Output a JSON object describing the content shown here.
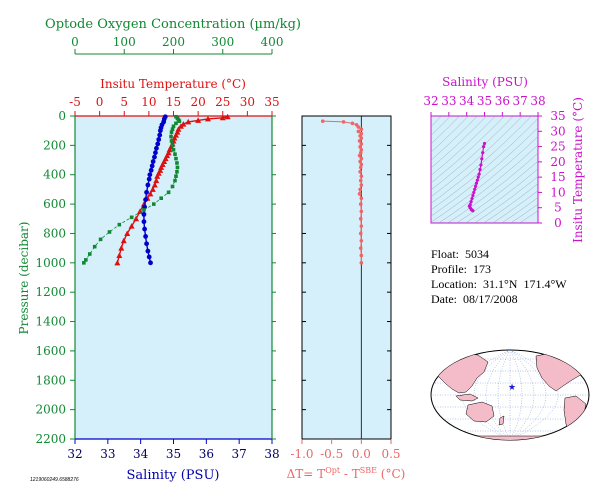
{
  "colors": {
    "background": "#ffffff",
    "plot_bg": "#d5f0fa",
    "oxygen": "#118833",
    "temperature": "#dd1111",
    "salinity": "#0000cc",
    "dt": "#ee6666",
    "ts": "#cc11cc",
    "land": "#f4bcc8",
    "float_marker": "#1a1acc"
  },
  "info": {
    "float": "Float:  5034",
    "profile": "Profile:  173",
    "location": "Location:  31.1°N  171.4°W",
    "date": "Date:  08/17/2008"
  },
  "stamp": "1219060249.6588276",
  "chart_data": [
    {
      "type": "scatter",
      "name": "main-profile",
      "ylabel": "Pressure (decibar)",
      "ylim": [
        2200,
        0
      ],
      "yticks": [
        0,
        200,
        400,
        600,
        800,
        1000,
        1200,
        1400,
        1600,
        1800,
        2000,
        2200
      ],
      "axes": {
        "oxygen": {
          "label": "Optode Oxygen Concentration (µm/kg)",
          "range": [
            0,
            400
          ],
          "ticks": [
            0,
            100,
            200,
            300,
            400
          ]
        },
        "temperature": {
          "label": "Insitu Temperature (°C)",
          "range": [
            -5,
            35
          ],
          "ticks": [
            -5,
            0,
            5,
            10,
            15,
            20,
            25,
            30,
            35
          ]
        },
        "salinity": {
          "label": "Salinity (PSU)",
          "range": [
            32,
            38
          ],
          "ticks": [
            32,
            33,
            34,
            35,
            36,
            37,
            38
          ]
        }
      },
      "series": [
        {
          "axis": "temperature",
          "marker": "triangle",
          "points": [
            [
              26,
              5
            ],
            [
              25,
              12
            ],
            [
              22,
              20
            ],
            [
              20,
              30
            ],
            [
              18,
              40
            ],
            [
              17,
              55
            ],
            [
              16.5,
              70
            ],
            [
              16,
              90
            ],
            [
              15.8,
              110
            ],
            [
              15.5,
              130
            ],
            [
              15.2,
              150
            ],
            [
              15,
              170
            ],
            [
              14.8,
              190
            ],
            [
              14.5,
              210
            ],
            [
              14.2,
              230
            ],
            [
              14,
              250
            ],
            [
              13.7,
              270
            ],
            [
              13.4,
              290
            ],
            [
              13.1,
              310
            ],
            [
              12.8,
              330
            ],
            [
              12.5,
              350
            ],
            [
              12.3,
              370
            ],
            [
              12,
              390
            ],
            [
              11.7,
              410
            ],
            [
              11.5,
              440
            ],
            [
              11.2,
              470
            ],
            [
              10.8,
              500
            ],
            [
              10.3,
              530
            ],
            [
              9.7,
              560
            ],
            [
              9,
              600
            ],
            [
              8.2,
              650
            ],
            [
              7.4,
              700
            ],
            [
              6.5,
              750
            ],
            [
              5.6,
              800
            ],
            [
              4.9,
              850
            ],
            [
              4.4,
              900
            ],
            [
              4,
              950
            ],
            [
              3.6,
              1000
            ]
          ]
        },
        {
          "axis": "salinity",
          "marker": "circle",
          "points": [
            [
              34.75,
              5
            ],
            [
              34.72,
              20
            ],
            [
              34.7,
              40
            ],
            [
              34.65,
              60
            ],
            [
              34.62,
              80
            ],
            [
              34.6,
              100
            ],
            [
              34.58,
              130
            ],
            [
              34.55,
              160
            ],
            [
              34.52,
              190
            ],
            [
              34.48,
              220
            ],
            [
              34.45,
              250
            ],
            [
              34.42,
              280
            ],
            [
              34.38,
              310
            ],
            [
              34.35,
              340
            ],
            [
              34.32,
              370
            ],
            [
              34.28,
              400
            ],
            [
              34.26,
              430
            ],
            [
              34.22,
              470
            ],
            [
              34.18,
              520
            ],
            [
              34.15,
              570
            ],
            [
              34.12,
              620
            ],
            [
              34.1,
              670
            ],
            [
              34.1,
              720
            ],
            [
              34.12,
              770
            ],
            [
              34.15,
              820
            ],
            [
              34.18,
              870
            ],
            [
              34.22,
              920
            ],
            [
              34.26,
              960
            ],
            [
              34.3,
              1000
            ]
          ]
        },
        {
          "axis": "oxygen",
          "marker": "square",
          "points": [
            [
              205,
              5
            ],
            [
              208,
              15
            ],
            [
              210,
              25
            ],
            [
              212,
              35
            ],
            [
              205,
              50
            ],
            [
              200,
              70
            ],
            [
              198,
              90
            ],
            [
              196,
              110
            ],
            [
              195,
              140
            ],
            [
              196,
              170
            ],
            [
              198,
              200
            ],
            [
              200,
              230
            ],
            [
              203,
              260
            ],
            [
              205,
              290
            ],
            [
              207,
              320
            ],
            [
              208,
              350
            ],
            [
              207,
              380
            ],
            [
              205,
              410
            ],
            [
              203,
              440
            ],
            [
              198,
              480
            ],
            [
              190,
              520
            ],
            [
              175,
              560
            ],
            [
              160,
              600
            ],
            [
              140,
              640
            ],
            [
              115,
              690
            ],
            [
              90,
              740
            ],
            [
              70,
              790
            ],
            [
              52,
              840
            ],
            [
              40,
              890
            ],
            [
              30,
              940
            ],
            [
              22,
              980
            ],
            [
              18,
              1000
            ]
          ]
        }
      ]
    },
    {
      "type": "scatter",
      "name": "delta-t",
      "xlabel": "ΔT= T^Opt - T^SBE (°C)",
      "xlim": [
        -1.0,
        0.5
      ],
      "xticks": [
        -1.0,
        -0.5,
        0.0,
        0.5
      ],
      "ylim": [
        2200,
        0
      ],
      "points": [
        [
          -0.65,
          35
        ],
        [
          -0.3,
          40
        ],
        [
          -0.15,
          50
        ],
        [
          -0.08,
          60
        ],
        [
          -0.05,
          75
        ],
        [
          0.0,
          90
        ],
        [
          -0.05,
          105
        ],
        [
          0.0,
          120
        ],
        [
          -0.02,
          135
        ],
        [
          0.0,
          150
        ],
        [
          -0.03,
          170
        ],
        [
          0.0,
          190
        ],
        [
          -0.02,
          210
        ],
        [
          0.0,
          230
        ],
        [
          -0.01,
          250
        ],
        [
          -0.03,
          270
        ],
        [
          0.0,
          290
        ],
        [
          -0.02,
          310
        ],
        [
          0.0,
          330
        ],
        [
          -0.01,
          350
        ],
        [
          -0.02,
          380
        ],
        [
          0.0,
          410
        ],
        [
          -0.01,
          440
        ],
        [
          0.0,
          470
        ],
        [
          -0.02,
          500
        ],
        [
          -0.03,
          530
        ],
        [
          0.0,
          560
        ],
        [
          -0.01,
          600
        ],
        [
          0.0,
          650
        ],
        [
          -0.01,
          700
        ],
        [
          0.0,
          750
        ],
        [
          -0.01,
          800
        ],
        [
          0.0,
          850
        ],
        [
          -0.01,
          900
        ],
        [
          0.0,
          950
        ],
        [
          0.0,
          1000
        ]
      ]
    },
    {
      "type": "scatter",
      "name": "ts-diagram",
      "xlabel": "Salinity (PSU)",
      "ylabel": "Insitu Temperature (°C)",
      "xlim": [
        32,
        38
      ],
      "ylim": [
        0,
        35
      ],
      "xticks": [
        32,
        33,
        34,
        35,
        36,
        37,
        38
      ],
      "yticks": [
        0,
        5,
        10,
        15,
        20,
        25,
        30,
        35
      ],
      "points": [
        [
          35.0,
          26
        ],
        [
          34.95,
          25
        ],
        [
          34.9,
          23
        ],
        [
          34.85,
          21
        ],
        [
          34.8,
          19
        ],
        [
          34.75,
          17.5
        ],
        [
          34.7,
          16
        ],
        [
          34.65,
          15
        ],
        [
          34.6,
          14
        ],
        [
          34.55,
          13
        ],
        [
          34.5,
          12
        ],
        [
          34.45,
          11
        ],
        [
          34.4,
          10
        ],
        [
          34.35,
          9
        ],
        [
          34.3,
          8
        ],
        [
          34.25,
          7
        ],
        [
          34.2,
          6
        ],
        [
          34.15,
          5.5
        ],
        [
          34.2,
          5
        ],
        [
          34.25,
          4.5
        ],
        [
          34.3,
          4.2
        ],
        [
          34.35,
          4
        ]
      ]
    }
  ]
}
